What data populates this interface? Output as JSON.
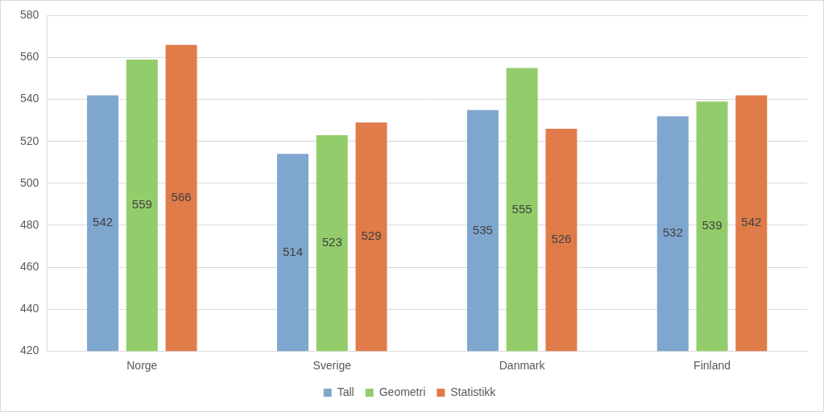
{
  "chart_data": {
    "type": "bar",
    "categories": [
      "Norge",
      "Sverige",
      "Danmark",
      "Finland"
    ],
    "series": [
      {
        "name": "Tall",
        "color": "#7fa6cf",
        "values": [
          542,
          514,
          535,
          532
        ]
      },
      {
        "name": "Geometri",
        "color": "#93cd6b",
        "values": [
          559,
          523,
          555,
          539
        ]
      },
      {
        "name": "Statistikk",
        "color": "#e07b4a",
        "values": [
          566,
          529,
          526,
          542
        ]
      }
    ],
    "ylim": [
      420,
      580
    ],
    "yticks": [
      420,
      440,
      460,
      480,
      500,
      520,
      540,
      560,
      580
    ],
    "grid": true,
    "legend": "bottom",
    "data_labels": true
  }
}
